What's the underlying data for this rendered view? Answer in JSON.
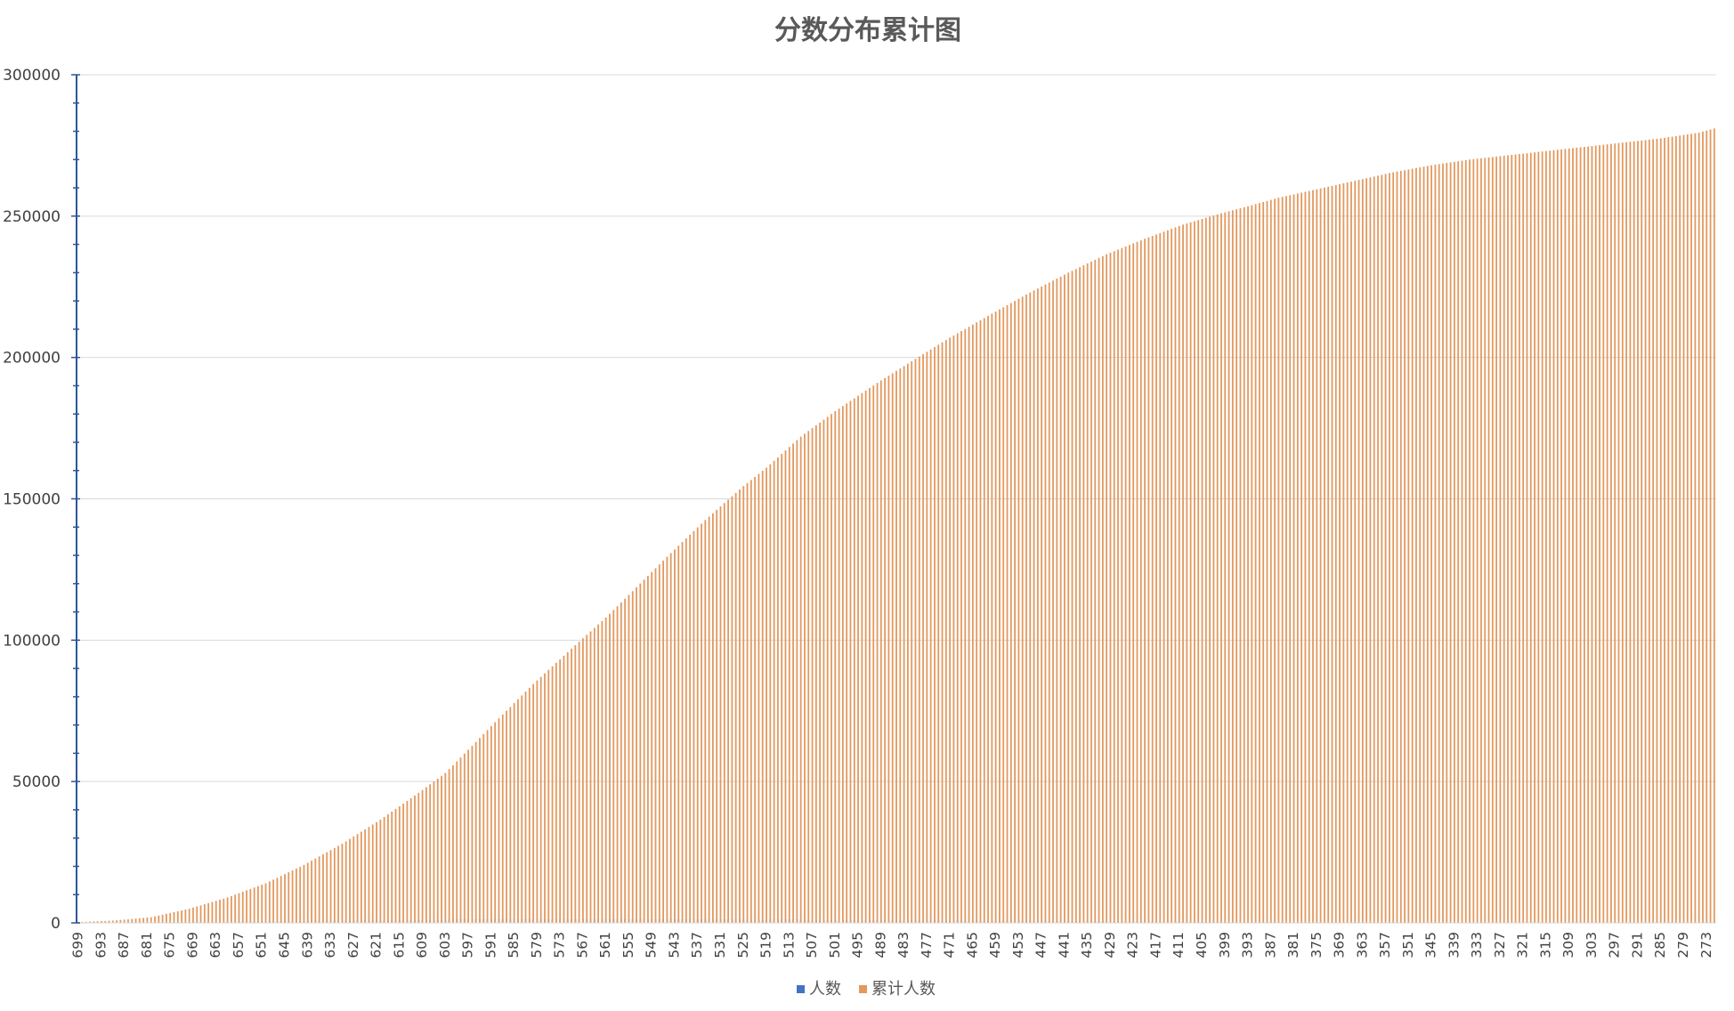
{
  "colors": {
    "cumulative_bars": "#e2995f",
    "count_bars": "#4472c4",
    "gridline": "#d9d9d9",
    "axis": "#2f5597",
    "title": "#595959",
    "text": "#404040"
  },
  "chart_data": {
    "type": "bar",
    "title": "分数分布累计图",
    "xlabel": "",
    "ylabel": "",
    "ylim": [
      0,
      300000
    ],
    "y_ticks": [
      0,
      50000,
      100000,
      150000,
      200000,
      250000,
      300000
    ],
    "y_tick_labels": [
      "0",
      "50000",
      "100000",
      "150000",
      "200000",
      "250000",
      "300000"
    ],
    "x_categories_range": [
      699,
      271
    ],
    "x_tick_labels": [
      "699",
      "693",
      "687",
      "681",
      "675",
      "669",
      "663",
      "657",
      "651",
      "645",
      "639",
      "633",
      "627",
      "621",
      "615",
      "609",
      "603",
      "597",
      "591",
      "585",
      "579",
      "573",
      "567",
      "561",
      "555",
      "549",
      "543",
      "537",
      "531",
      "525",
      "519",
      "513",
      "507",
      "501",
      "495",
      "489",
      "483",
      "477",
      "471",
      "465",
      "459",
      "453",
      "447",
      "441",
      "435",
      "429",
      "423",
      "417",
      "411",
      "405",
      "399",
      "393",
      "387",
      "381",
      "375",
      "369",
      "363",
      "357",
      "351",
      "345",
      "339",
      "333",
      "327",
      "321",
      "315",
      "309",
      "303",
      "297",
      "291",
      "285",
      "279",
      "273"
    ],
    "grid": true,
    "legend_position": "bottom",
    "series": [
      {
        "name": "人数",
        "color": "#4472c4"
      },
      {
        "name": "累计人数",
        "color": "#e2995f"
      }
    ],
    "cumulative_checkpoints": {
      "scores": [
        699,
        690,
        680,
        670,
        660,
        650,
        640,
        630,
        620,
        610,
        603,
        595,
        590,
        580,
        570,
        561,
        555,
        545,
        535,
        525,
        519,
        510,
        501,
        490,
        480,
        471,
        460,
        450,
        440,
        430,
        420,
        410,
        400,
        393,
        385,
        375,
        365,
        355,
        345,
        335,
        325,
        315,
        305,
        295,
        285,
        275,
        271
      ],
      "values": [
        300,
        800,
        2000,
        5000,
        9000,
        14000,
        20500,
        28000,
        36500,
        46000,
        53000,
        64000,
        71000,
        84500,
        97000,
        108000,
        116000,
        129500,
        142500,
        154500,
        161000,
        172000,
        181000,
        191000,
        199500,
        207000,
        215500,
        223000,
        230000,
        236500,
        242000,
        247000,
        251000,
        253500,
        256500,
        259500,
        262500,
        265500,
        268000,
        270000,
        271500,
        273000,
        274500,
        276000,
        277500,
        279500,
        281000
      ]
    }
  }
}
